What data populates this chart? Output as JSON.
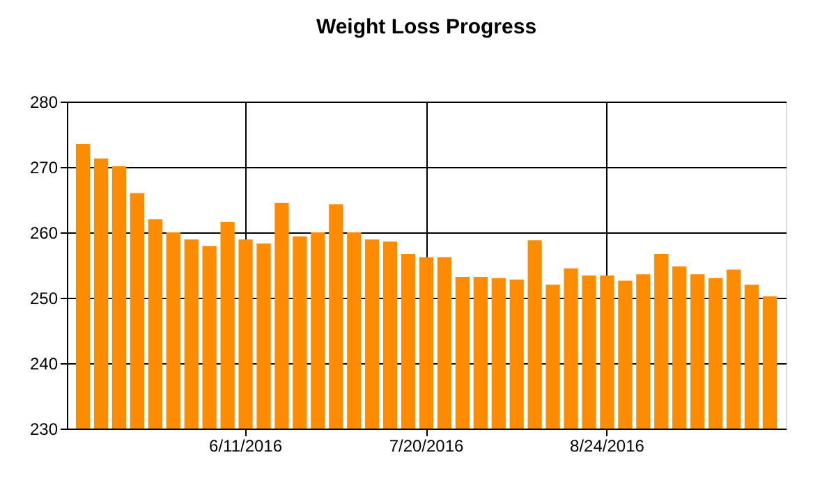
{
  "chart_data": {
    "type": "bar",
    "title": "Weight Loss Progress",
    "categories": [
      null,
      null,
      null,
      null,
      null,
      null,
      null,
      null,
      null,
      "6/11/2016",
      null,
      null,
      null,
      null,
      null,
      null,
      null,
      null,
      null,
      "7/20/2016",
      null,
      null,
      null,
      null,
      null,
      null,
      null,
      null,
      null,
      "8/24/2016",
      null,
      null,
      null,
      null,
      null,
      null,
      null,
      null,
      null
    ],
    "values": [
      273.5,
      271.3,
      270.1,
      266,
      262,
      260,
      258.9,
      257.9,
      261.6,
      258.9,
      258.3,
      264.5,
      259.4,
      260,
      264.3,
      260,
      258.9,
      258.6,
      256.7,
      256.2,
      256.2,
      253.2,
      253.2,
      253,
      252.8,
      258.8,
      252,
      254.5,
      253.4,
      253.4,
      252.6,
      253.6,
      256.7,
      254.8,
      253.6,
      253,
      254.3,
      252,
      250.2
    ],
    "color": "#ff8c00",
    "ylim": [
      230,
      280
    ],
    "yticks": [
      230,
      240,
      250,
      260,
      270,
      280
    ],
    "grid": true
  }
}
